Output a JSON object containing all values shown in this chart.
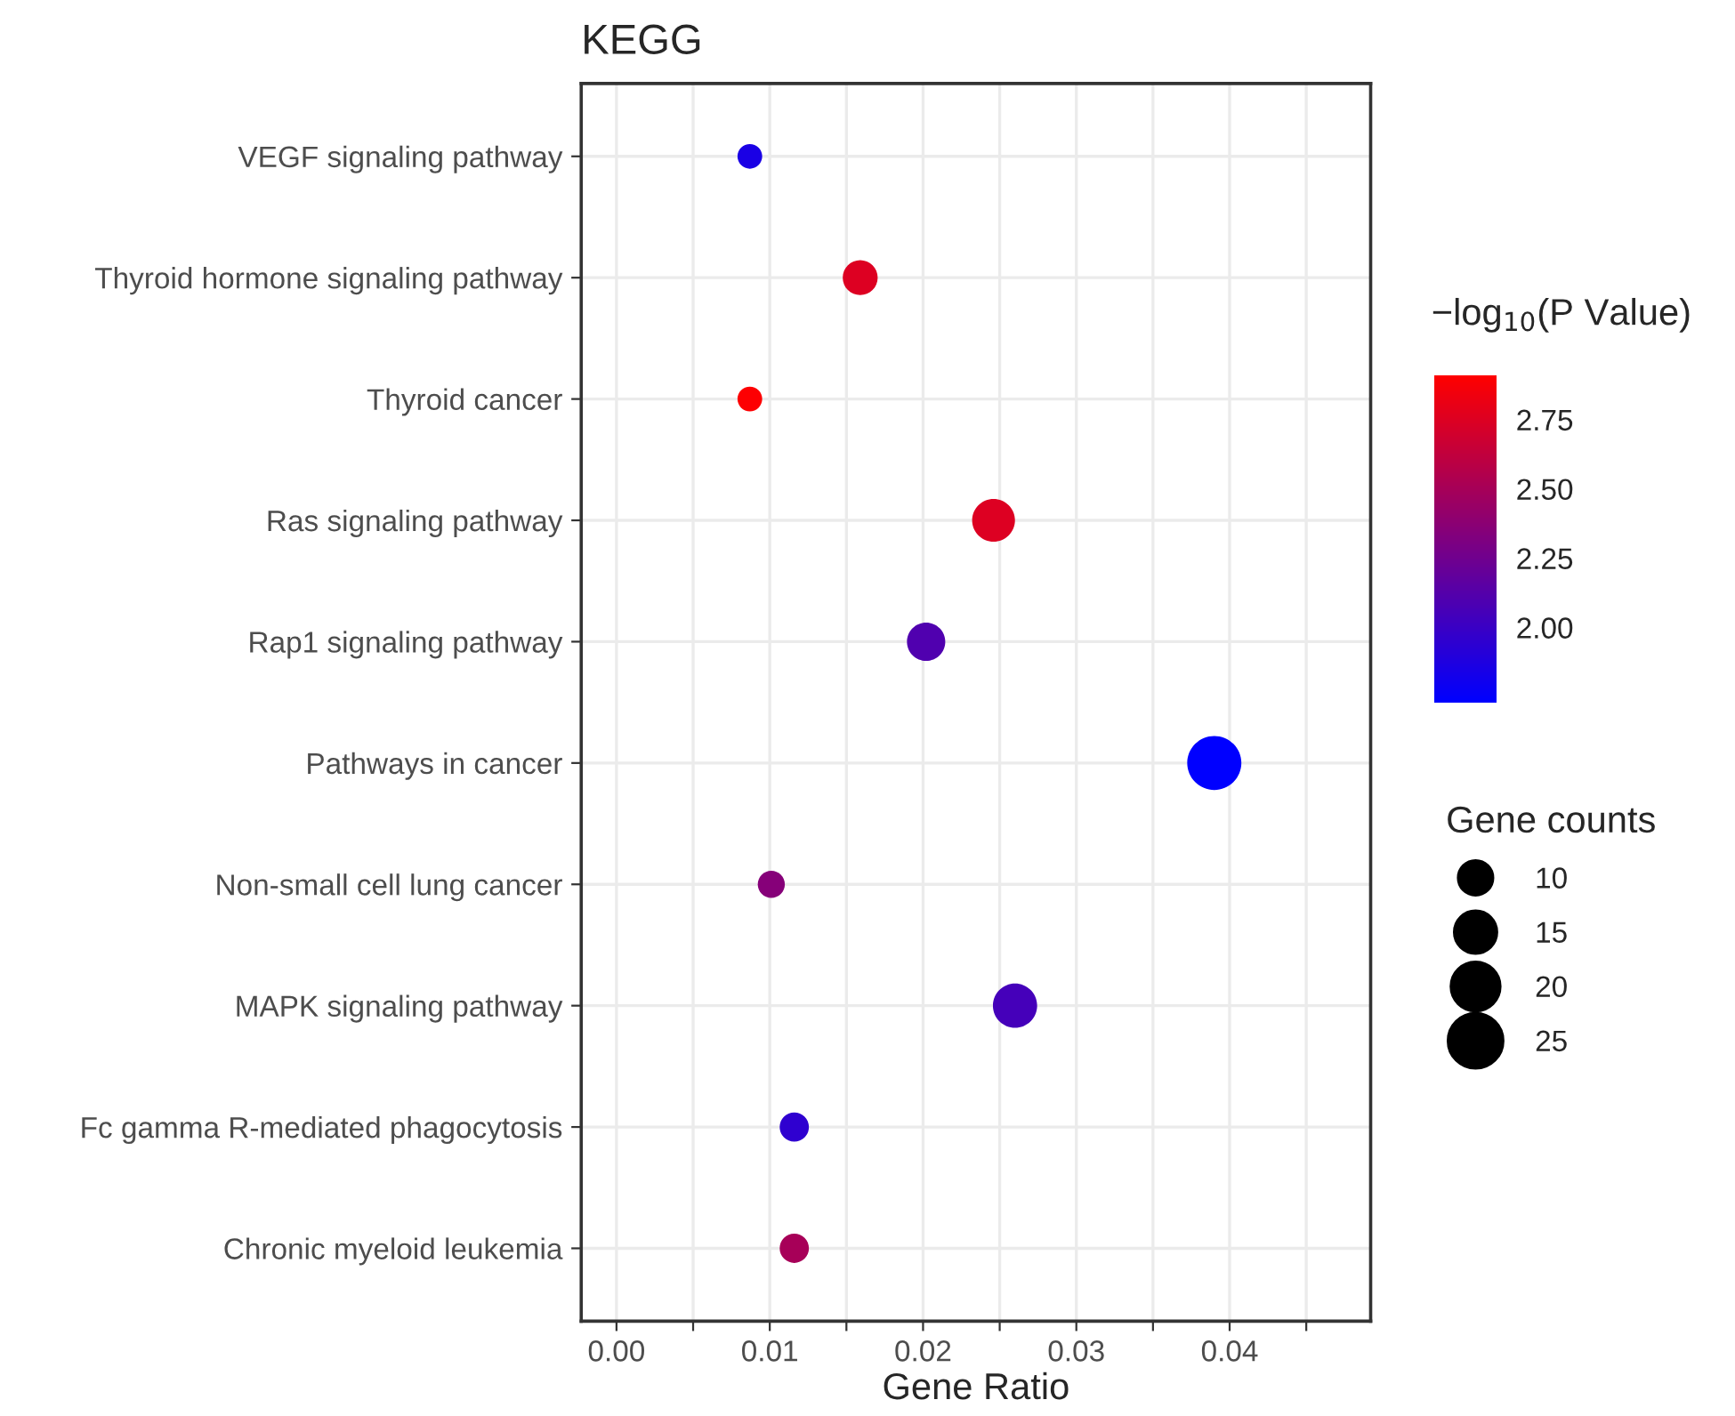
{
  "chart_data": {
    "type": "bubble",
    "orientation": "horizontal",
    "title": "KEGG",
    "xlabel": "Gene Ratio",
    "categories": [
      "VEGF signaling pathway",
      "Thyroid hormone signaling pathway",
      "Thyroid cancer",
      "Ras signaling pathway",
      "Rap1 signaling pathway",
      "Pathways in cancer",
      "Non-small cell lung cancer",
      "MAPK signaling pathway",
      "Fc gamma R-mediated phagocytosis",
      "Chronic myeloid leukemia"
    ],
    "values": [
      0.0087,
      0.0159,
      0.0087,
      0.0246,
      0.0202,
      0.039,
      0.0101,
      0.026,
      0.0116,
      0.0116
    ],
    "sizes": [
      5,
      10,
      5,
      15,
      12,
      24,
      6,
      16,
      7,
      7
    ],
    "size_legend": [
      10,
      15,
      20,
      25
    ],
    "legend_title": "Gene counts",
    "cvalues": [
      1.85,
      2.75,
      2.9,
      2.75,
      2.1,
      1.73,
      2.35,
      2.05,
      1.95,
      2.5
    ],
    "clabel": "−log$_{10}$(P Value)",
    "clim": [
      1.73,
      2.91
    ],
    "cticks": [
      {
        "value": 2.0,
        "label": "2.00"
      },
      {
        "value": 2.25,
        "label": "2.25"
      },
      {
        "value": 2.5,
        "label": "2.50"
      },
      {
        "value": 2.75,
        "label": "2.75"
      }
    ],
    "xlim": [
      -0.0023,
      0.0492
    ],
    "xticks": [
      {
        "value": 0.0,
        "label": "0.00"
      },
      {
        "value": 0.005,
        "label": null
      },
      {
        "value": 0.01,
        "label": "0.01"
      },
      {
        "value": 0.015,
        "label": null
      },
      {
        "value": 0.02,
        "label": "0.02"
      },
      {
        "value": 0.025,
        "label": null
      },
      {
        "value": 0.03,
        "label": "0.03"
      },
      {
        "value": 0.035,
        "label": null
      },
      {
        "value": 0.04,
        "label": "0.04"
      },
      {
        "value": 0.045,
        "label": null
      }
    ],
    "grid": true
  }
}
